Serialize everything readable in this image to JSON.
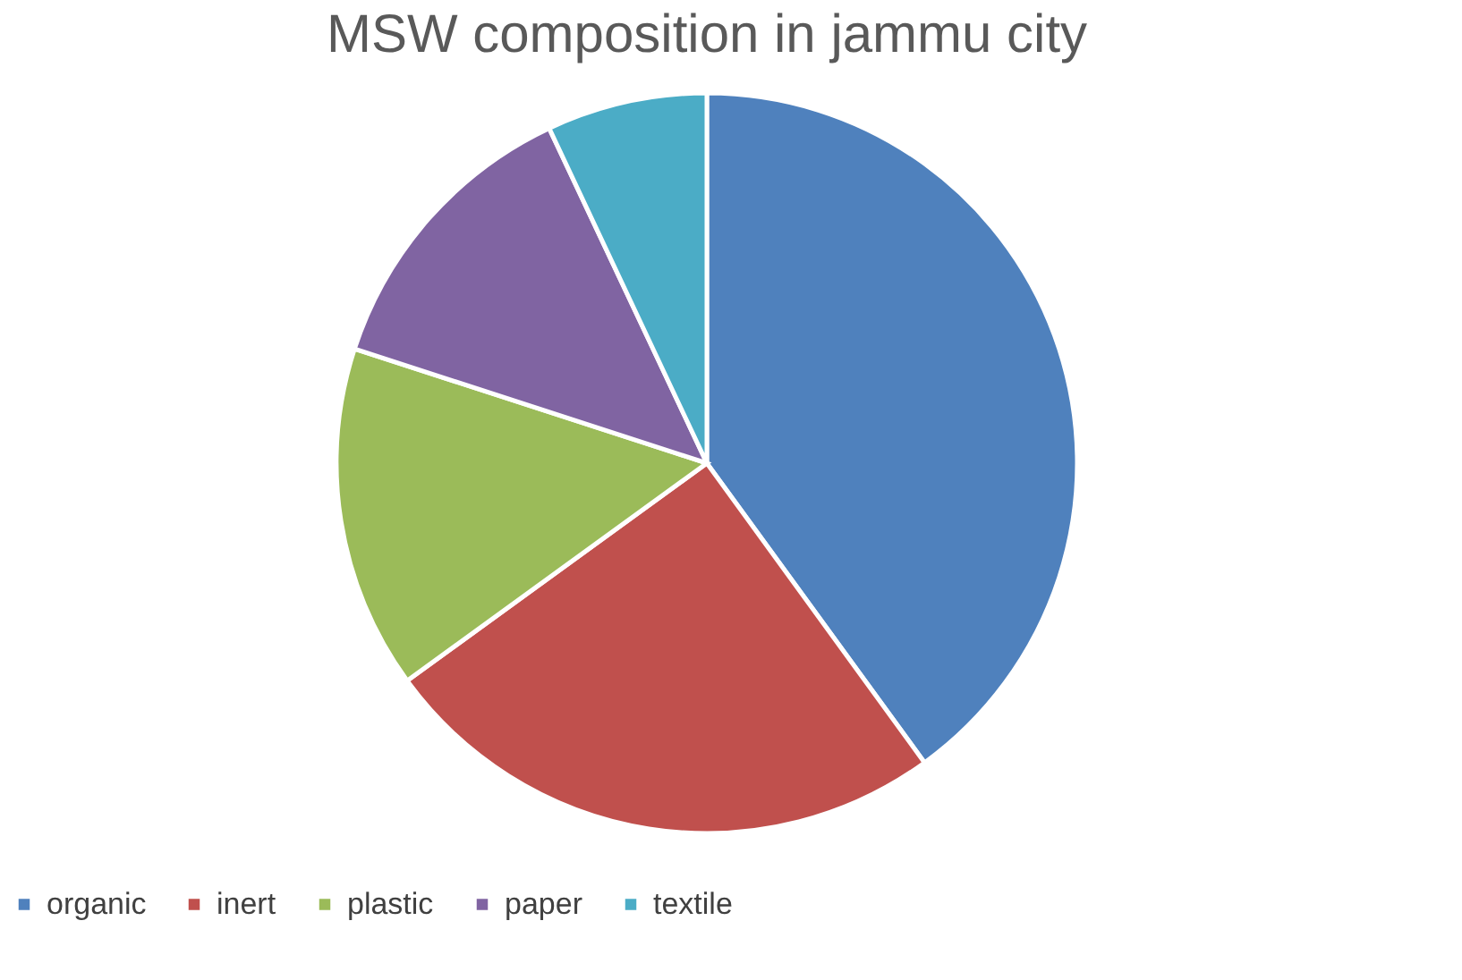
{
  "chart_data": {
    "type": "pie",
    "title": "MSW composition in jammu city",
    "categories": [
      "organic",
      "inert",
      "plastic",
      "paper",
      "textile"
    ],
    "values": [
      40,
      25,
      15,
      13,
      7
    ],
    "colors": [
      "#4f81bd",
      "#c0504d",
      "#9bbb59",
      "#8064a2",
      "#4bacc6"
    ],
    "legend": "bottom"
  }
}
